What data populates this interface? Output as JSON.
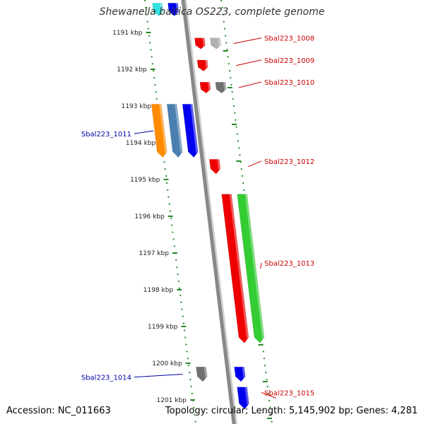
{
  "title": "Shewanella baltica OS223, complete genome",
  "footer": {
    "accession": "Accession: NC_011663",
    "summary": "Topology: circular; Length: 5,145,902 bp; Genes: 4,281"
  },
  "colors": {
    "forward_label": "#cc0000",
    "reverse_label": "#0000aa",
    "backbone": "#888888",
    "ticks": "#2a8a2a"
  },
  "scale": {
    "unit": "kbp",
    "labels": [
      "1191 kbp",
      "1192 kbp",
      "1193 kbp",
      "1194 kbp",
      "1195 kbp",
      "1196 kbp",
      "1197 kbp",
      "1198 kbp",
      "1199 kbp",
      "1200 kbp",
      "1201 kbp"
    ]
  },
  "features": [
    {
      "strand": "reverse",
      "color": "#33e0e0",
      "kbp": [
        1190.2,
        1190.55
      ],
      "lane": 2,
      "label": ""
    },
    {
      "strand": "reverse",
      "color": "#0000ee",
      "kbp": [
        1190.2,
        1190.55
      ],
      "lane": 1,
      "label": ""
    },
    {
      "strand": "forward",
      "color": "#ee0000",
      "kbp": [
        1191.15,
        1191.45
      ],
      "lane": 1,
      "label": "Sbal223_1008"
    },
    {
      "strand": "forward",
      "color": "#b0b0b0",
      "kbp": [
        1191.15,
        1191.45
      ],
      "lane": 2,
      "label": ""
    },
    {
      "strand": "forward",
      "color": "#ee0000",
      "kbp": [
        1191.75,
        1192.05
      ],
      "lane": 1,
      "label": "Sbal223_1009"
    },
    {
      "strand": "forward",
      "color": "#ee0000",
      "kbp": [
        1192.35,
        1192.65
      ],
      "lane": 1,
      "label": "Sbal223_1010"
    },
    {
      "strand": "forward",
      "color": "#707070",
      "kbp": [
        1192.35,
        1192.65
      ],
      "lane": 2,
      "label": ""
    },
    {
      "strand": "reverse",
      "color": "#ff8c00",
      "kbp": [
        1192.95,
        1194.4
      ],
      "lane": 3,
      "label": "Sbal223_1011"
    },
    {
      "strand": "reverse",
      "color": "#4a7fb0",
      "kbp": [
        1192.95,
        1194.4
      ],
      "lane": 2,
      "label": ""
    },
    {
      "strand": "reverse",
      "color": "#0000ee",
      "kbp": [
        1192.95,
        1194.4
      ],
      "lane": 1,
      "label": ""
    },
    {
      "strand": "forward",
      "color": "#ee0000",
      "kbp": [
        1194.45,
        1194.85
      ],
      "lane": 1,
      "label": "Sbal223_1012"
    },
    {
      "strand": "forward",
      "color": "#ee0000",
      "kbp": [
        1195.4,
        1199.45
      ],
      "lane": 1,
      "label": "Sbal223_1013"
    },
    {
      "strand": "forward",
      "color": "#33cc33",
      "kbp": [
        1195.4,
        1199.45
      ],
      "lane": 2,
      "label": ""
    },
    {
      "strand": "reverse",
      "color": "#707070",
      "kbp": [
        1200.1,
        1200.5
      ],
      "lane": 2,
      "label": "Sbal223_1014"
    },
    {
      "strand": "forward",
      "color": "#0000ee",
      "kbp": [
        1200.1,
        1200.5
      ],
      "lane": 1,
      "label": ""
    },
    {
      "strand": "forward",
      "color": "#0000ee",
      "kbp": [
        1200.65,
        1201.25
      ],
      "lane": 1,
      "label": "Sbal223_1015"
    }
  ]
}
